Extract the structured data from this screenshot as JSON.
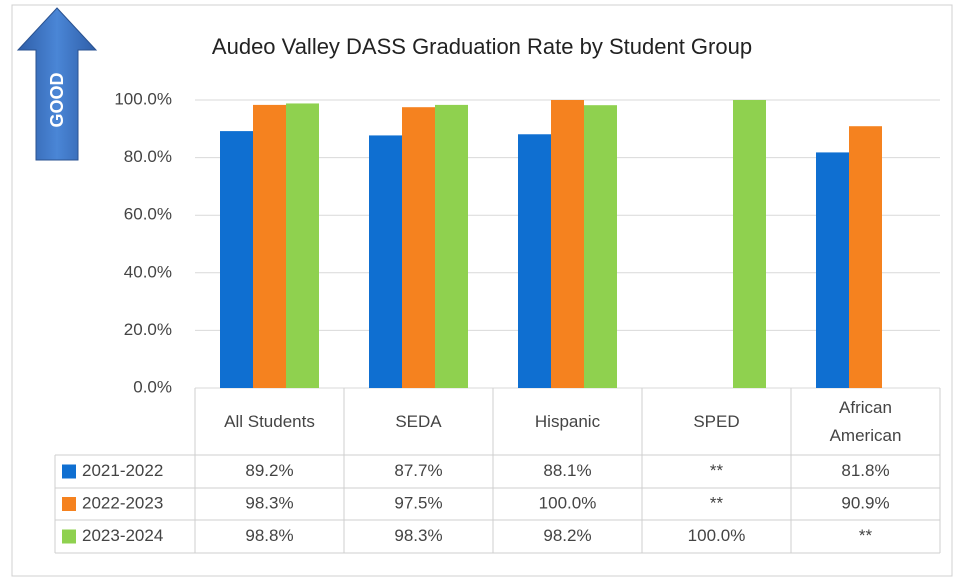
{
  "chart_data": {
    "type": "bar",
    "title": "Audeo Valley DASS Graduation Rate by Student Group",
    "annotations": [
      "GOOD"
    ],
    "categories": [
      "All Students",
      "SEDA",
      "Hispanic",
      "SPED",
      "African American"
    ],
    "series": [
      {
        "name": "2021-2022",
        "color": "#0f6fd1",
        "values": [
          89.2,
          87.7,
          88.1,
          null,
          81.8
        ],
        "value_labels": [
          "89.2%",
          "87.7%",
          "88.1%",
          "**",
          "81.8%"
        ]
      },
      {
        "name": "2022-2023",
        "color": "#f5821f",
        "values": [
          98.3,
          97.5,
          100.0,
          null,
          90.9
        ],
        "value_labels": [
          "98.3%",
          "97.5%",
          "100.0%",
          "**",
          "90.9%"
        ]
      },
      {
        "name": "2023-2024",
        "color": "#8fd14f",
        "values": [
          98.8,
          98.3,
          98.2,
          100.0,
          null
        ],
        "value_labels": [
          "98.8%",
          "98.3%",
          "98.2%",
          "100.0%",
          "**"
        ]
      }
    ],
    "ylim": [
      0,
      100
    ],
    "yticks": [
      {
        "value": 0,
        "label": "0.0%"
      },
      {
        "value": 20,
        "label": "20.0%"
      },
      {
        "value": 40,
        "label": "40.0%"
      },
      {
        "value": 60,
        "label": "60.0%"
      },
      {
        "value": 80,
        "label": "80.0%"
      },
      {
        "value": 100,
        "label": "100.0%"
      }
    ],
    "grid": true
  }
}
